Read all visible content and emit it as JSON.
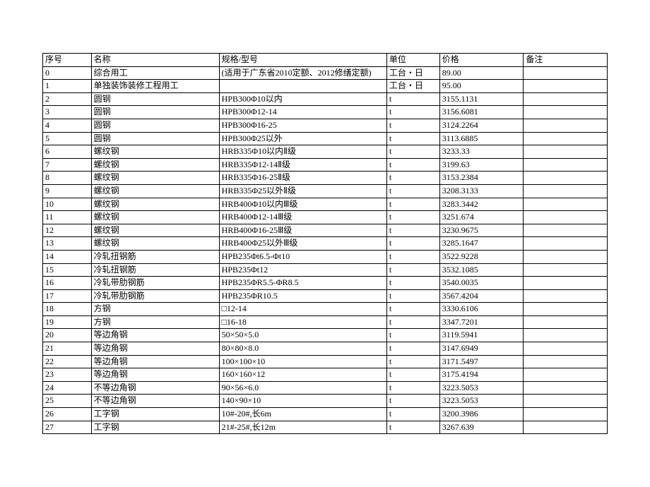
{
  "table": {
    "headers": {
      "seq": "序号",
      "name": "名称",
      "spec": "规格/型号",
      "unit": "单位",
      "price": "价格",
      "remark": "备注"
    },
    "rows": [
      {
        "seq": "0",
        "name": "综合用工",
        "spec": "(适用于广东省2010定额、2012修缮定额)",
        "unit": "工台・日",
        "price": "89.00",
        "remark": "",
        "multiline": true
      },
      {
        "seq": "1",
        "name": "单独装饰装修工程用工",
        "spec": "",
        "unit": "工台・日",
        "price": "95.00",
        "remark": ""
      },
      {
        "seq": "2",
        "name": "圆钢",
        "spec": "HPB300Φ10以内",
        "unit": "t",
        "price": "3155.1131",
        "remark": ""
      },
      {
        "seq": "3",
        "name": "圆钢",
        "spec": "HPB300Φ12-14",
        "unit": "t",
        "price": "3156.6081",
        "remark": ""
      },
      {
        "seq": "4",
        "name": "圆钢",
        "spec": "HPB300Φ16-25",
        "unit": "t",
        "price": "3124.2264",
        "remark": ""
      },
      {
        "seq": "5",
        "name": "圆钢",
        "spec": "HPB300Φ25以外",
        "unit": "t",
        "price": "3113.6885",
        "remark": ""
      },
      {
        "seq": "6",
        "name": "螺纹钢",
        "spec": "HRB335Φ10以内Ⅱ级",
        "unit": "t",
        "price": "3233.33",
        "remark": ""
      },
      {
        "seq": "7",
        "name": "螺纹钢",
        "spec": "HRB335Φ12-14Ⅱ级",
        "unit": "t",
        "price": "3199.63",
        "remark": ""
      },
      {
        "seq": "8",
        "name": "螺纹钢",
        "spec": "HRB335Φ16-25Ⅱ级",
        "unit": "t",
        "price": "3153.2384",
        "remark": ""
      },
      {
        "seq": "9",
        "name": "螺纹钢",
        "spec": "HRB335Φ25以外Ⅱ级",
        "unit": "t",
        "price": "3208.3133",
        "remark": ""
      },
      {
        "seq": "10",
        "name": "螺纹钢",
        "spec": "HRB400Φ10以内Ⅲ级",
        "unit": "t",
        "price": "3283.3442",
        "remark": ""
      },
      {
        "seq": "11",
        "name": "螺纹钢",
        "spec": "HRB400Φ12-14Ⅲ级",
        "unit": "t",
        "price": "3251.674",
        "remark": ""
      },
      {
        "seq": "12",
        "name": "螺纹钢",
        "spec": "HRB400Φ16-25Ⅲ级",
        "unit": "t",
        "price": "3230.9675",
        "remark": ""
      },
      {
        "seq": "13",
        "name": "螺纹钢",
        "spec": "HRB400Φ25以外Ⅲ级",
        "unit": "t",
        "price": "3285.1647",
        "remark": ""
      },
      {
        "seq": "14",
        "name": "冷轧扭钢筋",
        "spec": "HPB235Φt6.5-Φt10",
        "unit": "t",
        "price": "3522.9228",
        "remark": ""
      },
      {
        "seq": "15",
        "name": "冷轧扭钢筋",
        "spec": "HPB235Φt12",
        "unit": "t",
        "price": "3532.1085",
        "remark": ""
      },
      {
        "seq": "16",
        "name": "冷轧带肋钢筋",
        "spec": "HPB235ΦR5.5-ΦR8.5",
        "unit": "t",
        "price": "3540.0035",
        "remark": ""
      },
      {
        "seq": "17",
        "name": "冷轧带肋钢筋",
        "spec": "HPB235ΦR10.5",
        "unit": "t",
        "price": "3567.4204",
        "remark": ""
      },
      {
        "seq": "18",
        "name": "方钢",
        "spec": "□12-14",
        "unit": "t",
        "price": "3330.6106",
        "remark": ""
      },
      {
        "seq": "19",
        "name": "方钢",
        "spec": "□16-18",
        "unit": "t",
        "price": "3347.7201",
        "remark": ""
      },
      {
        "seq": "20",
        "name": "等边角钢",
        "spec": "50×50×5.0",
        "unit": "t",
        "price": "3119.5941",
        "remark": ""
      },
      {
        "seq": "21",
        "name": "等边角钢",
        "spec": "80×80×8.0",
        "unit": "t",
        "price": "3147.6949",
        "remark": ""
      },
      {
        "seq": "22",
        "name": "等边角钢",
        "spec": "100×100×10",
        "unit": "t",
        "price": "3171.5497",
        "remark": ""
      },
      {
        "seq": "23",
        "name": "等边角钢",
        "spec": "160×160×12",
        "unit": "t",
        "price": "3175.4194",
        "remark": ""
      },
      {
        "seq": "24",
        "name": "不等边角钢",
        "spec": "90×56×6.0",
        "unit": "t",
        "price": "3223.5053",
        "remark": ""
      },
      {
        "seq": "25",
        "name": "不等边角钢",
        "spec": "140×90×10",
        "unit": "t",
        "price": "3223.5053",
        "remark": ""
      },
      {
        "seq": "26",
        "name": "工字钢",
        "spec": "10#-20#,长6m",
        "unit": "t",
        "price": "3200.3986",
        "remark": ""
      },
      {
        "seq": "27",
        "name": "工字钢",
        "spec": "21#-25#,长12m",
        "unit": "t",
        "price": "3267.639",
        "remark": ""
      }
    ]
  },
  "styling": {
    "font_family": "SimSun",
    "font_size": 12,
    "border_color": "#000000",
    "background_color": "#ffffff",
    "text_color": "#000000",
    "column_widths": {
      "seq": 55,
      "name": 145,
      "spec": 190,
      "unit": 60,
      "price": 95,
      "remark": 95
    }
  }
}
